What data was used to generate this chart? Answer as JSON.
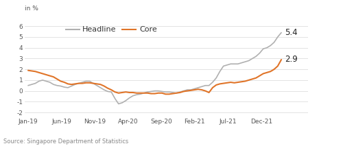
{
  "ylabel": "in %",
  "source": "Source: Singapore Department of Statistics",
  "xlabels": [
    "Jan-19",
    "Jun-19",
    "Nov-19",
    "Apr-20",
    "Sep-20",
    "Feb-21",
    "Jul-21",
    "Dec-21"
  ],
  "yticks": [
    -2,
    -1,
    0,
    1,
    2,
    3,
    4,
    5,
    6
  ],
  "ylim": [
    -2.4,
    6.8
  ],
  "xlim_right": 1.1,
  "headline_color": "#b0b0b0",
  "core_color": "#e07428",
  "headline_label": "Headline",
  "core_label": "Core",
  "headline_end_value": "5.4",
  "core_end_value": "2.9",
  "headline": [
    0.5,
    0.6,
    0.7,
    0.9,
    1.0,
    0.9,
    0.8,
    0.6,
    0.5,
    0.45,
    0.35,
    0.3,
    0.45,
    0.6,
    0.7,
    0.8,
    0.9,
    0.9,
    0.7,
    0.5,
    0.3,
    0.1,
    -0.05,
    -0.1,
    -0.7,
    -1.2,
    -1.1,
    -0.9,
    -0.65,
    -0.45,
    -0.35,
    -0.3,
    -0.2,
    -0.1,
    -0.05,
    0.0,
    0.0,
    -0.05,
    -0.1,
    -0.1,
    -0.15,
    -0.2,
    -0.1,
    0.0,
    0.1,
    0.1,
    0.2,
    0.3,
    0.4,
    0.5,
    0.5,
    0.8,
    1.2,
    1.8,
    2.3,
    2.4,
    2.5,
    2.5,
    2.5,
    2.6,
    2.7,
    2.8,
    3.0,
    3.2,
    3.5,
    3.9,
    4.0,
    4.2,
    4.5,
    5.0,
    5.4
  ],
  "core": [
    1.9,
    1.85,
    1.8,
    1.7,
    1.6,
    1.5,
    1.4,
    1.3,
    1.1,
    0.9,
    0.8,
    0.65,
    0.6,
    0.65,
    0.7,
    0.7,
    0.75,
    0.75,
    0.7,
    0.65,
    0.6,
    0.45,
    0.25,
    0.1,
    -0.1,
    -0.2,
    -0.15,
    -0.1,
    -0.15,
    -0.15,
    -0.2,
    -0.2,
    -0.2,
    -0.2,
    -0.25,
    -0.25,
    -0.2,
    -0.2,
    -0.3,
    -0.3,
    -0.25,
    -0.2,
    -0.15,
    -0.05,
    0.0,
    0.05,
    0.1,
    0.15,
    0.1,
    0.0,
    -0.15,
    0.3,
    0.55,
    0.65,
    0.7,
    0.75,
    0.8,
    0.75,
    0.8,
    0.85,
    0.9,
    1.0,
    1.1,
    1.2,
    1.4,
    1.6,
    1.7,
    1.8,
    2.0,
    2.3,
    2.9
  ]
}
